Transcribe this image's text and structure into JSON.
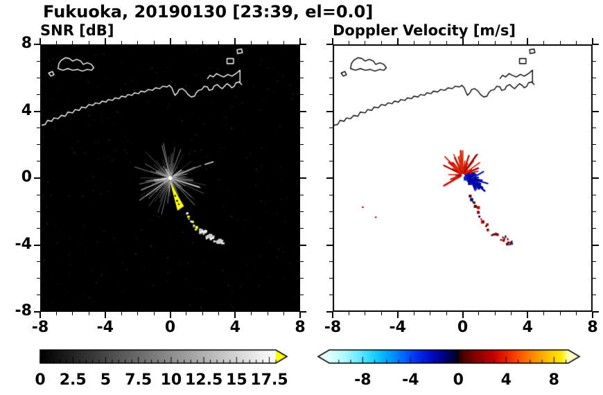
{
  "figure": {
    "title": "Fukuoka, 20190130 [23:39, el=0.0]"
  },
  "chart_data": [
    {
      "type": "heatmap",
      "panel": "left",
      "title": "SNR [dB]",
      "xlim": [
        -8,
        8
      ],
      "ylim": [
        -8,
        8
      ],
      "xticks": [
        -8,
        -4,
        0,
        4,
        8
      ],
      "xtick_labels": [
        "-8",
        "-4",
        "0",
        "4",
        "8"
      ],
      "yticks": [
        8,
        4,
        0,
        -4,
        -8
      ],
      "ytick_labels": [
        "8",
        "4",
        "0",
        "-4",
        "-8"
      ],
      "minor_tick_step": 1,
      "grid": false,
      "background_color": "#000000",
      "map_outline_color": "#ffffff",
      "colorbar": {
        "tick_labels": [
          "0",
          "2.5",
          "5",
          "7.5",
          "10",
          "12.5",
          "15",
          "17.5"
        ],
        "tick_values": [
          0,
          2.5,
          5,
          7.5,
          10,
          12.5,
          15,
          17.5
        ],
        "range": [
          0,
          18
        ],
        "minor_step": 0.5,
        "stops": [
          [
            0,
            "#000000"
          ],
          [
            18,
            "#ffffff"
          ]
        ],
        "arrow_right_color": "#ffff00"
      },
      "features": {
        "radar_center": [
          0.0,
          0.0
        ],
        "center_dot_color": "#ffffff",
        "streak_color_range": [
          "#5a5a5a",
          "#eeeeee"
        ],
        "beam": {
          "color": "#ffff00",
          "apex": [
            0.0,
            -0.25
          ],
          "tip_a": [
            0.45,
            -1.95
          ],
          "tip_b": [
            0.85,
            -1.68
          ]
        },
        "echo_trail": {
          "from": [
            0.9,
            -2.0
          ],
          "to": [
            1.6,
            -3.1
          ]
        },
        "clutter_blobs": [
          [
            1.9,
            -3.15
          ],
          [
            2.4,
            -3.45
          ],
          [
            2.95,
            -3.75
          ]
        ],
        "detached_streak": [
          [
            2.15,
            0.82
          ],
          [
            2.65,
            0.97
          ]
        ]
      }
    },
    {
      "type": "heatmap",
      "panel": "right",
      "title": "Doppler Velocity [m/s]",
      "xlim": [
        -8,
        8
      ],
      "ylim": [
        -8,
        8
      ],
      "xticks": [
        -8,
        -4,
        0,
        4,
        8
      ],
      "xtick_labels": [
        "-8",
        "-4",
        "0",
        "4",
        "8"
      ],
      "yticks": [
        8,
        4,
        0,
        -4,
        -8
      ],
      "minor_tick_step": 1,
      "grid": false,
      "background_color": "#ffffff",
      "map_outline_color": "#000000",
      "colorbar": {
        "tick_labels": [
          "-8",
          "-4",
          "0",
          "4",
          "8"
        ],
        "tick_values": [
          -8,
          -4,
          0,
          4,
          8
        ],
        "range": [
          -10.8,
          9.2
        ],
        "minor_step": 1,
        "stops": [
          [
            -10.8,
            "#e0ffff"
          ],
          [
            -9.5,
            "#aef8ff"
          ],
          [
            -8.2,
            "#62e8ff"
          ],
          [
            -7.0,
            "#18d0ff"
          ],
          [
            -5.8,
            "#00a0ff"
          ],
          [
            -4.6,
            "#0068ff"
          ],
          [
            -3.5,
            "#0030f0"
          ],
          [
            -2.4,
            "#0010c8"
          ],
          [
            -1.4,
            "#000090"
          ],
          [
            -0.5,
            "#000048"
          ],
          [
            -0.05,
            "#000018"
          ],
          [
            0.05,
            "#280000"
          ],
          [
            0.6,
            "#580000"
          ],
          [
            1.6,
            "#8c0000"
          ],
          [
            2.8,
            "#bc0000"
          ],
          [
            4.0,
            "#e82000"
          ],
          [
            5.2,
            "#ff5800"
          ],
          [
            6.4,
            "#ff9000"
          ],
          [
            7.6,
            "#ffc400"
          ],
          [
            8.6,
            "#ffe800"
          ],
          [
            9.2,
            "#ffffb0"
          ]
        ],
        "arrow_left_color": "#e6ffff",
        "arrow_right_color": "#ffffc8"
      },
      "features": {
        "radar_center": [
          0.05,
          0.15
        ],
        "toward_colors": [
          "#cc1100",
          "#e03010",
          "#aa0000",
          "#d42000"
        ],
        "away_colors": [
          "#0000bb",
          "#000090",
          "#1122cc",
          "#000070"
        ],
        "red_fan": {
          "center": [
            0.0,
            0.2
          ],
          "angle_deg": [
            10,
            215
          ]
        },
        "blue_cluster_center": [
          0.5,
          -0.05
        ],
        "trail": {
          "from": [
            0.35,
            -1.05
          ],
          "to": [
            1.55,
            -3.05
          ]
        },
        "spot_clusters": [
          [
            1.95,
            -3.3
          ],
          [
            2.5,
            -3.55
          ],
          [
            2.9,
            -3.8
          ]
        ],
        "isolated_specks": [
          [
            -6.2,
            -1.7
          ],
          [
            -5.4,
            -2.3
          ]
        ]
      }
    }
  ],
  "coastline": {
    "lines": [
      {
        "closed": false,
        "pts": [
          [
            -8,
            3.15
          ],
          [
            -7.7,
            3.2
          ],
          [
            -7.55,
            3.45
          ],
          [
            -7.3,
            3.4
          ],
          [
            -7.15,
            3.6
          ],
          [
            -6.9,
            3.55
          ],
          [
            -6.7,
            3.75
          ],
          [
            -6.45,
            3.7
          ],
          [
            -6.3,
            3.95
          ],
          [
            -6,
            3.9
          ],
          [
            -5.85,
            4.1
          ],
          [
            -5.6,
            4.05
          ],
          [
            -5.45,
            4.25
          ],
          [
            -5.2,
            4.2
          ],
          [
            -5,
            4.4
          ],
          [
            -4.75,
            4.35
          ],
          [
            -4.6,
            4.5
          ],
          [
            -4.35,
            4.45
          ],
          [
            -4.2,
            4.6
          ],
          [
            -3.95,
            4.55
          ],
          [
            -3.8,
            4.7
          ],
          [
            -3.55,
            4.65
          ],
          [
            -3.4,
            4.8
          ],
          [
            -3.15,
            4.75
          ],
          [
            -3,
            4.9
          ],
          [
            -2.75,
            4.85
          ],
          [
            -2.6,
            5
          ],
          [
            -2.35,
            4.95
          ],
          [
            -2.2,
            5.1
          ],
          [
            -1.95,
            5.05
          ],
          [
            -1.8,
            5.2
          ],
          [
            -1.55,
            5.15
          ],
          [
            -1.35,
            5.3
          ],
          [
            -1.1,
            5.25
          ],
          [
            -0.9,
            5.4
          ],
          [
            -0.65,
            5.35
          ],
          [
            -0.45,
            5.5
          ],
          [
            -0.2,
            5.45
          ],
          [
            -0.05,
            5.55
          ],
          [
            0.1,
            5.4
          ],
          [
            0.2,
            5.15
          ],
          [
            0.3,
            4.95
          ],
          [
            0.45,
            5.1
          ],
          [
            0.55,
            5.3
          ],
          [
            0.75,
            5.35
          ],
          [
            0.95,
            5.2
          ],
          [
            1.1,
            5
          ],
          [
            1.3,
            4.85
          ],
          [
            1.5,
            4.9
          ],
          [
            1.6,
            5.1
          ],
          [
            1.75,
            5.25
          ],
          [
            1.95,
            5.3
          ],
          [
            2.1,
            5.5
          ],
          [
            2.3,
            5.45
          ],
          [
            2.4,
            5.25
          ],
          [
            2.6,
            5.3
          ],
          [
            2.7,
            5.5
          ],
          [
            2.9,
            5.6
          ],
          [
            3.05,
            5.45
          ],
          [
            3.2,
            5.35
          ],
          [
            3.35,
            5.5
          ],
          [
            3.5,
            5.65
          ],
          [
            3.65,
            5.55
          ],
          [
            3.8,
            5.4
          ],
          [
            3.95,
            5.5
          ],
          [
            4.05,
            5.7
          ],
          [
            4.25,
            5.75
          ],
          [
            4.4,
            5.6
          ]
        ]
      },
      {
        "closed": true,
        "pts": [
          [
            -6.9,
            6.55
          ],
          [
            -6.6,
            6.45
          ],
          [
            -6.3,
            6.55
          ],
          [
            -6,
            6.45
          ],
          [
            -5.7,
            6.5
          ],
          [
            -5.4,
            6.4
          ],
          [
            -5.1,
            6.5
          ],
          [
            -4.85,
            6.45
          ],
          [
            -4.7,
            6.6
          ],
          [
            -4.85,
            6.8
          ],
          [
            -5.1,
            6.9
          ],
          [
            -5.35,
            6.8
          ],
          [
            -5.5,
            7
          ],
          [
            -5.75,
            7.1
          ],
          [
            -6,
            7
          ],
          [
            -6.2,
            7.15
          ],
          [
            -6.45,
            7.2
          ],
          [
            -6.7,
            7.05
          ],
          [
            -6.85,
            6.85
          ]
        ]
      },
      {
        "closed": true,
        "pts": [
          [
            -7.35,
            6.1
          ],
          [
            -7.15,
            6.18
          ],
          [
            -7.25,
            6.38
          ],
          [
            -7.48,
            6.28
          ]
        ]
      },
      {
        "closed": false,
        "pts": [
          [
            2.3,
            5.95
          ],
          [
            2.45,
            6.15
          ],
          [
            2.65,
            6.05
          ],
          [
            2.85,
            6.25
          ],
          [
            3.05,
            6.15
          ],
          [
            3.3,
            6.05
          ],
          [
            3.55,
            6.2
          ],
          [
            3.8,
            6.1
          ],
          [
            4.05,
            6.25
          ],
          [
            4.3,
            6.45
          ]
        ]
      },
      {
        "closed": false,
        "pts": [
          [
            4.3,
            5.75
          ],
          [
            4.3,
            6.45
          ]
        ]
      },
      {
        "closed": true,
        "pts": [
          [
            3.5,
            6.85
          ],
          [
            3.9,
            6.85
          ],
          [
            3.9,
            7.15
          ],
          [
            3.5,
            7.15
          ]
        ]
      },
      {
        "closed": true,
        "pts": [
          [
            4.15,
            7.45
          ],
          [
            4.45,
            7.5
          ],
          [
            4.4,
            7.72
          ],
          [
            4.12,
            7.68
          ]
        ]
      }
    ]
  }
}
